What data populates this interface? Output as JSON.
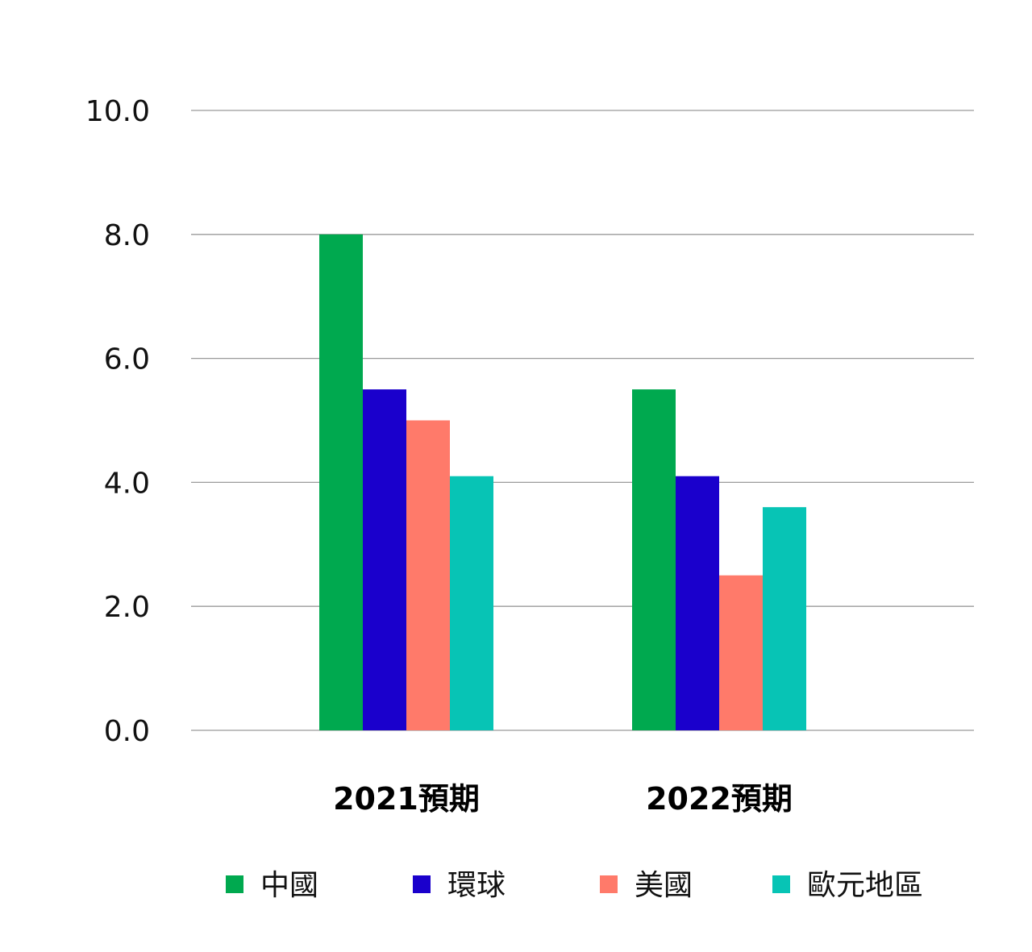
{
  "chart_data": {
    "type": "bar",
    "categories": [
      "2021預期",
      "2022預期"
    ],
    "series": [
      {
        "name": "中國",
        "color": "#00A94F",
        "values": [
          8.0,
          5.5
        ]
      },
      {
        "name": "環球",
        "color": "#1A00CC",
        "values": [
          5.5,
          4.1
        ]
      },
      {
        "name": "美國",
        "color": "#FF7A6A",
        "values": [
          5.0,
          2.5
        ]
      },
      {
        "name": "歐元地區",
        "color": "#07C4B5",
        "values": [
          4.1,
          3.6
        ]
      }
    ],
    "yticks": [
      "0.0",
      "2.0",
      "4.0",
      "6.0",
      "8.0",
      "10.0"
    ],
    "ylim": [
      0,
      10
    ],
    "grid": true,
    "legend_position": "bottom"
  }
}
